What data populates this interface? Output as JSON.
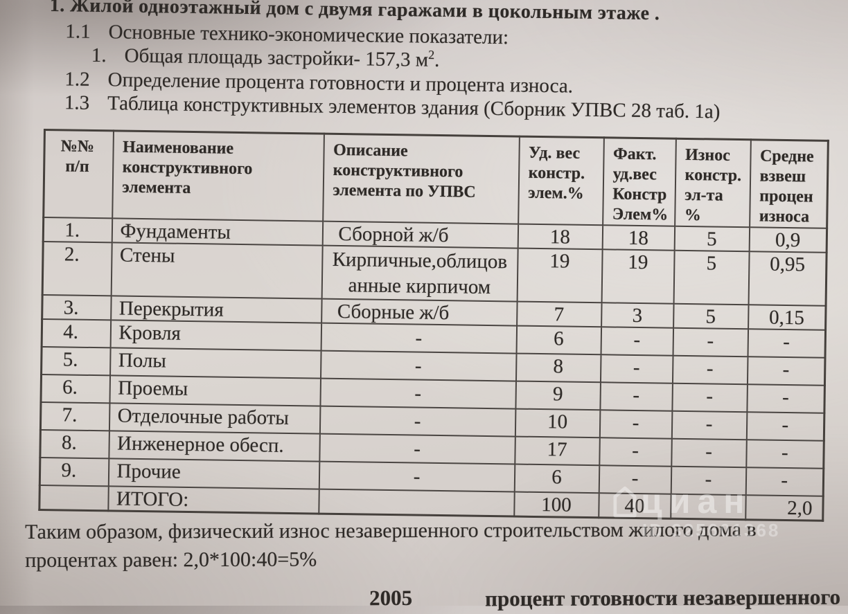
{
  "colors": {
    "paper": "#d8d2cd",
    "ink": "#2e2a27",
    "table_border": "#4a4542",
    "watermark": "#ffffff"
  },
  "intro": {
    "title": "1. Жилой одноэтажный дом с двумя гаражами в цокольным этаже .",
    "items": [
      {
        "num": "1.1",
        "text": "Основные технико-экономические показатели:",
        "sup": "",
        "tail": ""
      },
      {
        "num": "1.",
        "text": "Общая площадь застройки- 157,3 м",
        "sup": "2",
        "tail": "."
      },
      {
        "num": "1.2",
        "text": "Определение процента готовности и процента износа.",
        "sup": "",
        "tail": ""
      },
      {
        "num": "1.3",
        "text": "Таблица конструктивных элементов здания (Сборник УПВС 28 таб. 1а)",
        "sup": "",
        "tail": ""
      }
    ]
  },
  "table": {
    "headers": [
      "№№\nп/п",
      "Наименование\nконструктивного\nэлемента",
      "Описание\nконструктивного\nэлемента по УПВС",
      "Уд. вес\nконстр.\nэлем.%",
      "Факт.\nуд.вес\nКонстр\nЭлем%",
      "Износ\nконстр.\nэл-та\n%",
      "Средне\nвзвеш\nпроцен\nизноса"
    ],
    "rows": [
      [
        "1.",
        "Фундаменты",
        "Сборной ж/б",
        "18",
        "18",
        "5",
        "0,9"
      ],
      [
        "2.",
        "Стены",
        "Кирпичные,облицов\nанные кирпичом",
        "19",
        "19",
        "5",
        "0,95"
      ],
      [
        "3.",
        "Перекрытия",
        "Сборные ж/б",
        "7",
        "3",
        "5",
        "0,15"
      ],
      [
        "4.",
        "Кровля",
        "-",
        "6",
        "-",
        "-",
        "-"
      ],
      [
        "5.",
        "Полы",
        "-",
        "8",
        "-",
        "-",
        "-"
      ],
      [
        "6.",
        "Проемы",
        "-",
        "9",
        "-",
        "-",
        "-"
      ],
      [
        "7.",
        "Отделочные работы",
        "-",
        "10",
        "-",
        "-",
        "-"
      ],
      [
        "8.",
        "Инженерное обесп.",
        "-",
        "17",
        "-",
        "-",
        "-"
      ],
      [
        "9.",
        "Прочие",
        "-",
        "6",
        "-",
        "-",
        "-"
      ],
      [
        "",
        "ИТОГО:",
        "",
        "100",
        "40",
        "",
        "2,0"
      ]
    ]
  },
  "conclusion": "Таким образом, физический износ незавершенного строительством жилого дома  в\nпроцентах равен: 2,0*100:40=5%",
  "bottom_cut": {
    "year": "2005",
    "text": "процент готовности незавершенного"
  },
  "watermark": {
    "brand": "циан",
    "id": "ID 325601368"
  }
}
